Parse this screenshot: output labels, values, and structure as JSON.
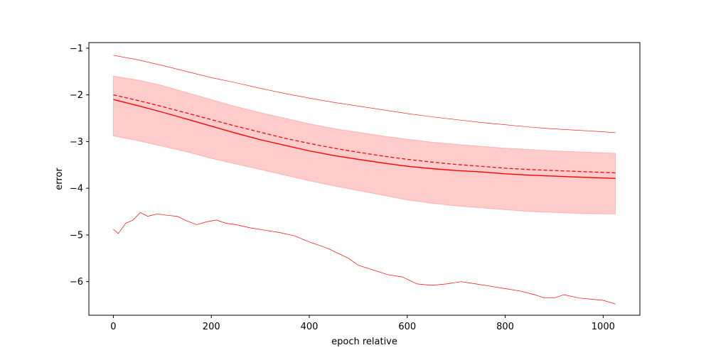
{
  "chart_data": {
    "type": "line",
    "title": "",
    "xlabel": "epoch relative",
    "ylabel": "error",
    "xlim": [
      -50,
      1075
    ],
    "ylim": [
      -6.72,
      -0.88
    ],
    "x_ticks": [
      0,
      200,
      400,
      600,
      800,
      1000
    ],
    "y_ticks": [
      -1,
      -2,
      -3,
      -4,
      -5,
      -6
    ],
    "grid": false,
    "legend": "none",
    "color": "#ff0000",
    "series": [
      {
        "style": "thin-solid-upper",
        "x": [
          0,
          50,
          100,
          150,
          200,
          250,
          300,
          350,
          400,
          450,
          500,
          550,
          600,
          650,
          700,
          750,
          800,
          850,
          900,
          950,
          1000,
          1025
        ],
        "values": [
          -1.15,
          -1.25,
          -1.37,
          -1.5,
          -1.63,
          -1.74,
          -1.86,
          -1.97,
          -2.07,
          -2.16,
          -2.24,
          -2.32,
          -2.4,
          -2.47,
          -2.53,
          -2.59,
          -2.64,
          -2.69,
          -2.73,
          -2.76,
          -2.79,
          -2.81
        ]
      },
      {
        "style": "dashed",
        "x": [
          0,
          50,
          100,
          150,
          200,
          250,
          300,
          350,
          400,
          450,
          500,
          550,
          600,
          650,
          700,
          750,
          800,
          850,
          900,
          950,
          1000,
          1025
        ],
        "values": [
          -2.0,
          -2.12,
          -2.25,
          -2.39,
          -2.53,
          -2.67,
          -2.8,
          -2.93,
          -3.04,
          -3.14,
          -3.23,
          -3.31,
          -3.38,
          -3.44,
          -3.49,
          -3.53,
          -3.57,
          -3.6,
          -3.62,
          -3.64,
          -3.66,
          -3.67
        ]
      },
      {
        "style": "solid-mean",
        "x": [
          0,
          50,
          100,
          150,
          200,
          250,
          300,
          350,
          400,
          450,
          500,
          550,
          600,
          650,
          700,
          750,
          800,
          850,
          900,
          950,
          1000,
          1025
        ],
        "values": [
          -2.1,
          -2.23,
          -2.37,
          -2.52,
          -2.67,
          -2.82,
          -2.96,
          -3.08,
          -3.2,
          -3.3,
          -3.38,
          -3.46,
          -3.53,
          -3.58,
          -3.62,
          -3.65,
          -3.69,
          -3.72,
          -3.74,
          -3.76,
          -3.78,
          -3.79
        ]
      },
      {
        "style": "thin-solid-lower",
        "x": [
          0,
          10,
          25,
          40,
          55,
          70,
          90,
          110,
          130,
          150,
          170,
          190,
          210,
          230,
          250,
          280,
          310,
          340,
          370,
          400,
          420,
          440,
          460,
          480,
          500,
          530,
          560,
          590,
          620,
          650,
          680,
          710,
          740,
          770,
          800,
          830,
          860,
          880,
          900,
          920,
          950,
          980,
          1000,
          1025
        ],
        "values": [
          -4.88,
          -4.97,
          -4.75,
          -4.68,
          -4.52,
          -4.6,
          -4.55,
          -4.58,
          -4.6,
          -4.7,
          -4.78,
          -4.72,
          -4.68,
          -4.75,
          -4.78,
          -4.85,
          -4.9,
          -4.95,
          -5.02,
          -5.15,
          -5.22,
          -5.3,
          -5.4,
          -5.5,
          -5.65,
          -5.75,
          -5.85,
          -5.9,
          -6.05,
          -6.08,
          -6.05,
          -6.0,
          -6.05,
          -6.1,
          -6.15,
          -6.2,
          -6.28,
          -6.35,
          -6.35,
          -6.28,
          -6.35,
          -6.38,
          -6.4,
          -6.48
        ]
      }
    ],
    "band": {
      "x": [
        0,
        50,
        100,
        150,
        200,
        250,
        300,
        350,
        400,
        450,
        500,
        550,
        600,
        650,
        700,
        750,
        800,
        850,
        900,
        950,
        1000,
        1025
      ],
      "upper": [
        -1.6,
        -1.68,
        -1.8,
        -1.95,
        -2.1,
        -2.25,
        -2.38,
        -2.5,
        -2.62,
        -2.72,
        -2.8,
        -2.88,
        -2.95,
        -3.01,
        -3.06,
        -3.1,
        -3.14,
        -3.17,
        -3.2,
        -3.22,
        -3.24,
        -3.25
      ],
      "lower": [
        -2.88,
        -2.98,
        -3.1,
        -3.22,
        -3.36,
        -3.48,
        -3.6,
        -3.72,
        -3.84,
        -3.95,
        -4.05,
        -4.15,
        -4.25,
        -4.32,
        -4.38,
        -4.42,
        -4.46,
        -4.5,
        -4.52,
        -4.54,
        -4.55,
        -4.55
      ]
    }
  }
}
